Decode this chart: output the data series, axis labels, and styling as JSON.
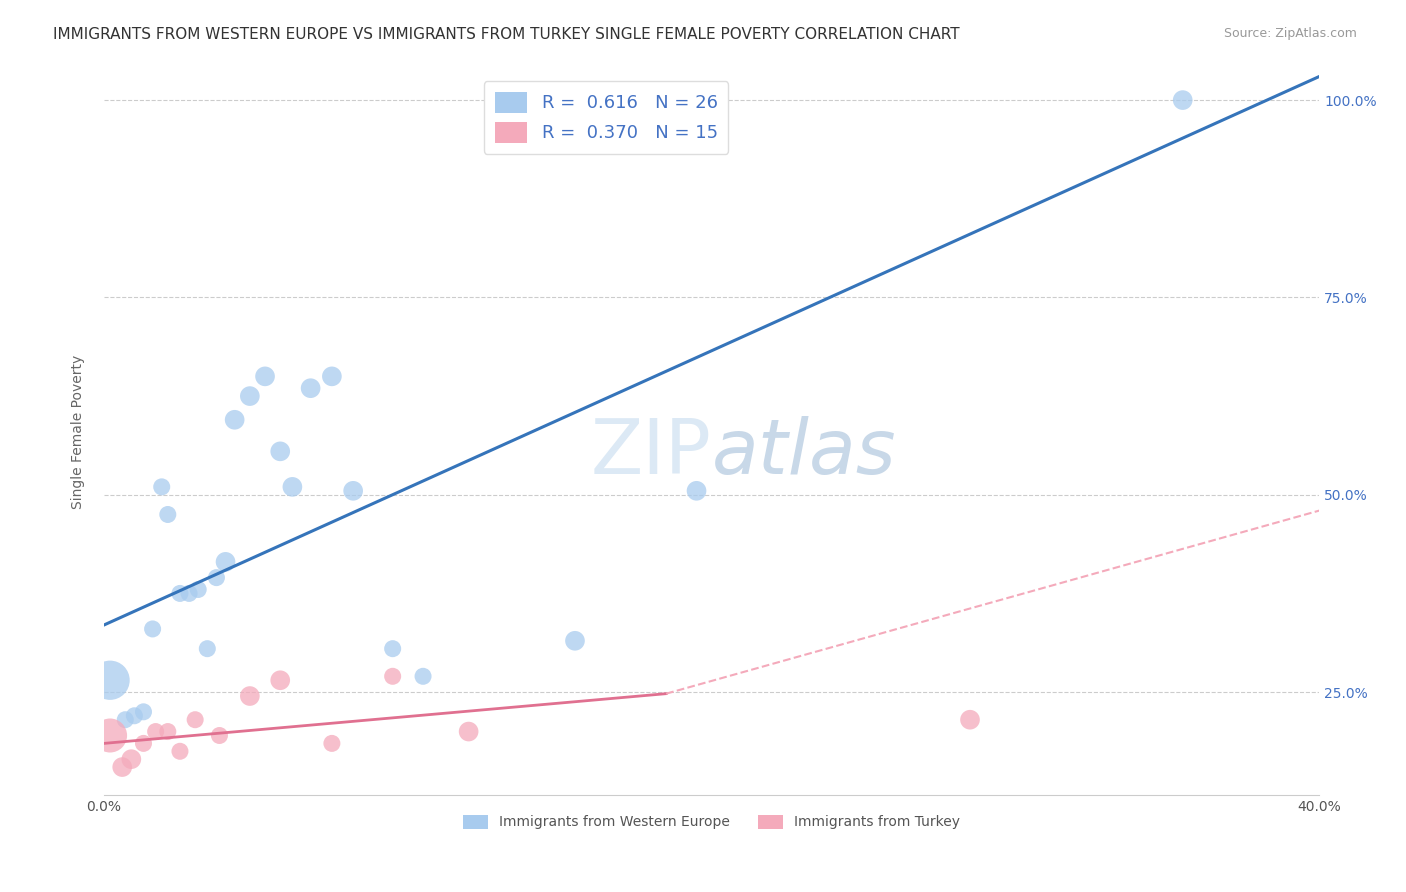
{
  "title": "IMMIGRANTS FROM WESTERN EUROPE VS IMMIGRANTS FROM TURKEY SINGLE FEMALE POVERTY CORRELATION CHART",
  "source": "Source: ZipAtlas.com",
  "xlabel_blue": "Immigrants from Western Europe",
  "xlabel_pink": "Immigrants from Turkey",
  "ylabel": "Single Female Poverty",
  "watermark_zip": "ZIP",
  "watermark_atlas": "atlas",
  "xlim": [
    0.0,
    0.4
  ],
  "ylim": [
    0.12,
    1.04
  ],
  "ytick_labels_right": [
    "100.0%",
    "75.0%",
    "50.0%",
    "25.0%"
  ],
  "ytick_vals_right": [
    1.0,
    0.75,
    0.5,
    0.25
  ],
  "R_blue": 0.616,
  "N_blue": 26,
  "R_pink": 0.37,
  "N_pink": 15,
  "blue_color": "#A8CBEE",
  "blue_line_color": "#3574BA",
  "pink_color": "#F4AABB",
  "pink_line_color": "#E07090",
  "pink_dash_color": "#F4AABB",
  "blue_scatter_x": [
    0.002,
    0.007,
    0.01,
    0.013,
    0.016,
    0.019,
    0.021,
    0.025,
    0.028,
    0.031,
    0.034,
    0.037,
    0.04,
    0.043,
    0.048,
    0.053,
    0.058,
    0.062,
    0.068,
    0.075,
    0.082,
    0.095,
    0.105,
    0.195,
    0.155,
    0.355
  ],
  "blue_scatter_y": [
    0.265,
    0.215,
    0.22,
    0.225,
    0.33,
    0.51,
    0.475,
    0.375,
    0.375,
    0.38,
    0.305,
    0.395,
    0.415,
    0.595,
    0.625,
    0.65,
    0.555,
    0.51,
    0.635,
    0.65,
    0.505,
    0.305,
    0.27,
    0.505,
    0.315,
    1.0
  ],
  "blue_scatter_size": [
    800,
    150,
    150,
    150,
    150,
    150,
    150,
    150,
    150,
    150,
    150,
    150,
    200,
    200,
    200,
    200,
    200,
    200,
    200,
    200,
    200,
    150,
    150,
    200,
    200,
    200
  ],
  "pink_scatter_x": [
    0.002,
    0.006,
    0.009,
    0.013,
    0.017,
    0.021,
    0.025,
    0.03,
    0.038,
    0.048,
    0.058,
    0.075,
    0.095,
    0.12,
    0.285
  ],
  "pink_scatter_y": [
    0.195,
    0.155,
    0.165,
    0.185,
    0.2,
    0.2,
    0.175,
    0.215,
    0.195,
    0.245,
    0.265,
    0.185,
    0.27,
    0.2,
    0.215
  ],
  "pink_scatter_size": [
    600,
    200,
    200,
    150,
    150,
    150,
    150,
    150,
    150,
    200,
    200,
    150,
    150,
    200,
    200
  ],
  "blue_line_x": [
    0.0,
    0.4
  ],
  "blue_line_y": [
    0.335,
    1.03
  ],
  "pink_solid_line_x": [
    0.0,
    0.185
  ],
  "pink_solid_line_y": [
    0.185,
    0.248
  ],
  "pink_dash_line_x": [
    0.185,
    0.4
  ],
  "pink_dash_line_y": [
    0.248,
    0.48
  ],
  "grid_color": "#CCCCCC",
  "background_color": "#FFFFFF",
  "title_fontsize": 11,
  "source_fontsize": 9,
  "watermark_fontsize_zip": 55,
  "watermark_fontsize_atlas": 55,
  "watermark_color": "#DCE9F5"
}
